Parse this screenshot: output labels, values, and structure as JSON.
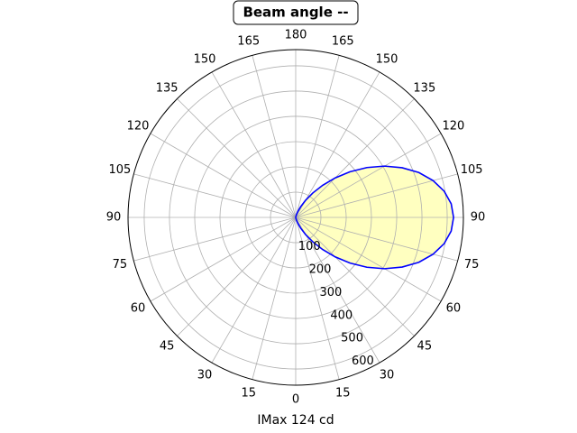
{
  "chart_data": {
    "type": "polar",
    "title": "Beam angle --",
    "xlabel": "IMax 124 cd",
    "x": [
      0,
      5,
      10,
      15,
      20,
      25,
      30,
      35,
      40,
      45,
      50,
      55,
      60,
      65,
      70,
      75,
      80,
      85,
      90,
      95,
      100,
      105,
      110,
      115,
      120,
      125,
      130,
      135,
      140,
      145,
      150,
      155,
      160,
      165,
      170,
      175,
      180
    ],
    "series": [
      {
        "color": "#0000ff",
        "fill": "#ffffc0",
        "values": [
          0,
          0,
          3,
          11,
          25,
          47,
          78,
          118,
          166,
          221,
          281,
          344,
          406,
          465,
          519,
          563,
          597,
          618,
          625,
          618,
          597,
          563,
          519,
          465,
          406,
          344,
          281,
          221,
          166,
          118,
          78,
          47,
          25,
          11,
          3,
          0,
          0
        ]
      }
    ],
    "ylim": [
      0,
      664
    ],
    "yticks": [
      100,
      200,
      300,
      400,
      500,
      600
    ],
    "xticks": [
      0,
      15,
      30,
      45,
      60,
      75,
      90,
      105,
      120,
      135,
      150,
      165,
      180,
      {
        "value": 195,
        "label": "165"
      },
      {
        "value": 210,
        "label": "150"
      },
      {
        "value": 225,
        "label": "135"
      },
      {
        "value": 240,
        "label": "120"
      },
      {
        "value": 255,
        "label": "105"
      },
      {
        "value": 270,
        "label": "90"
      },
      {
        "value": 285,
        "label": "75"
      },
      {
        "value": 300,
        "label": "60"
      },
      {
        "value": 315,
        "label": "45"
      },
      {
        "value": 330,
        "label": "30"
      },
      {
        "value": 345,
        "label": "15"
      }
    ],
    "grid": true
  }
}
